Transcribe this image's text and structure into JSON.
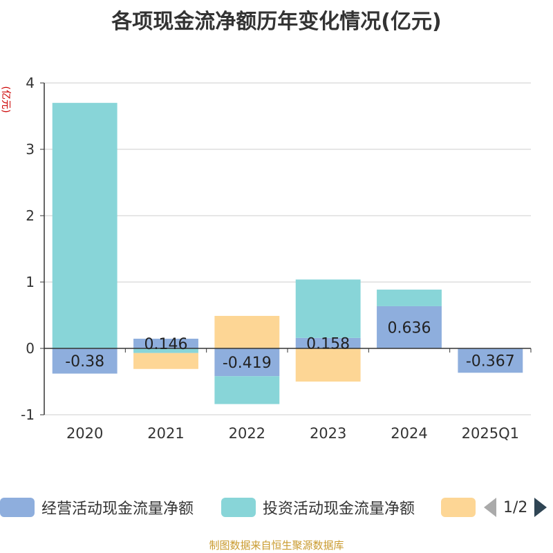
{
  "chart_data": {
    "type": "bar",
    "title": "各项现金流净额历年变化情况(亿元)",
    "ylabel": "(亿元)",
    "categories": [
      "2020",
      "2021",
      "2022",
      "2023",
      "2024",
      "2025Q1"
    ],
    "ylim": [
      -1,
      4
    ],
    "yticks": [
      -1,
      0,
      1,
      2,
      3,
      4
    ],
    "grid": true,
    "stacked": true,
    "series": [
      {
        "name": "经营活动现金流量净额",
        "color": "#8eaedd",
        "values": [
          -0.38,
          0.146,
          -0.419,
          0.158,
          0.636,
          -0.367
        ],
        "labels": [
          "-0.38",
          "0.146",
          "-0.419",
          "0.158",
          "0.636",
          "-0.367"
        ]
      },
      {
        "name": "投资活动现金流量净额",
        "color": "#88d5d8",
        "values": [
          3.7,
          -0.07,
          -0.42,
          0.88,
          0.25,
          0
        ]
      },
      {
        "name": "",
        "color": "#fdd695",
        "values": [
          0,
          -0.24,
          0.49,
          -0.5,
          0,
          0
        ]
      }
    ]
  },
  "legend": {
    "page_indicator": "1/2"
  },
  "source_note": "制图数据来自恒生聚源数据库"
}
